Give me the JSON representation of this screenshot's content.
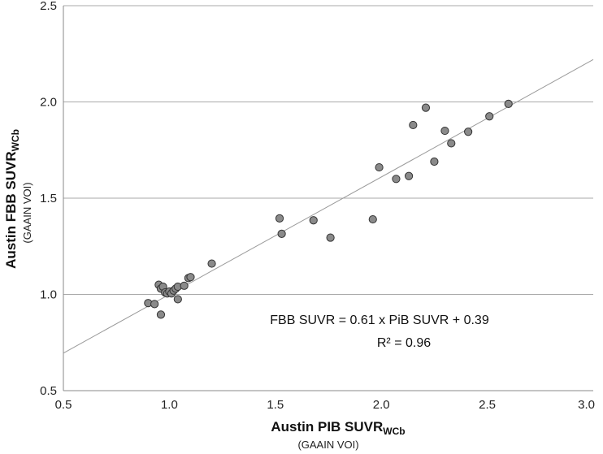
{
  "chart_data": {
    "type": "scatter",
    "xlabel": "Austin PIB SUVR",
    "xlabel_subscript": "WCb",
    "xlabel_note": "(GAAIN VOI)",
    "ylabel": "Austin FBB SUVR",
    "ylabel_subscript": "WCb",
    "ylabel_note": "(GAAIN VOI)",
    "xlim": [
      0.5,
      3.0
    ],
    "ylim": [
      0.5,
      2.5
    ],
    "x_ticks": [
      "0.5",
      "1.0",
      "1.5",
      "2.0",
      "2.5",
      "3.0"
    ],
    "y_ticks": [
      "0.5",
      "1.0",
      "1.5",
      "2.0",
      "2.5"
    ],
    "grid": "horizontal",
    "equation_text": "FBB SUVR = 0.61 x PiB SUVR + 0.39",
    "r2_text": "R² = 0.96",
    "trendline": {
      "slope": 0.61,
      "intercept": 0.39
    },
    "point_color": "#8a8a8a",
    "point_edge_color": "#333333",
    "line_color": "#9a9a9a",
    "grid_color": "#aaaaaa",
    "points": [
      {
        "x": 0.9,
        "y": 0.955
      },
      {
        "x": 0.93,
        "y": 0.95
      },
      {
        "x": 0.95,
        "y": 1.05
      },
      {
        "x": 0.96,
        "y": 0.895
      },
      {
        "x": 0.96,
        "y": 1.03
      },
      {
        "x": 0.97,
        "y": 1.04
      },
      {
        "x": 0.98,
        "y": 1.01
      },
      {
        "x": 0.99,
        "y": 1.005
      },
      {
        "x": 1.0,
        "y": 1.015
      },
      {
        "x": 1.01,
        "y": 1.005
      },
      {
        "x": 1.02,
        "y": 1.02
      },
      {
        "x": 1.03,
        "y": 1.03
      },
      {
        "x": 1.04,
        "y": 0.975
      },
      {
        "x": 1.04,
        "y": 1.04
      },
      {
        "x": 1.07,
        "y": 1.045
      },
      {
        "x": 1.09,
        "y": 1.085
      },
      {
        "x": 1.1,
        "y": 1.09
      },
      {
        "x": 1.2,
        "y": 1.16
      },
      {
        "x": 1.52,
        "y": 1.395
      },
      {
        "x": 1.53,
        "y": 1.315
      },
      {
        "x": 1.68,
        "y": 1.385
      },
      {
        "x": 1.76,
        "y": 1.295
      },
      {
        "x": 1.96,
        "y": 1.39
      },
      {
        "x": 1.99,
        "y": 1.66
      },
      {
        "x": 2.07,
        "y": 1.6
      },
      {
        "x": 2.13,
        "y": 1.615
      },
      {
        "x": 2.15,
        "y": 1.88
      },
      {
        "x": 2.21,
        "y": 1.97
      },
      {
        "x": 2.25,
        "y": 1.69
      },
      {
        "x": 2.3,
        "y": 1.85
      },
      {
        "x": 2.33,
        "y": 1.785
      },
      {
        "x": 2.41,
        "y": 1.845
      },
      {
        "x": 2.51,
        "y": 1.925
      },
      {
        "x": 2.6,
        "y": 1.99
      }
    ]
  }
}
